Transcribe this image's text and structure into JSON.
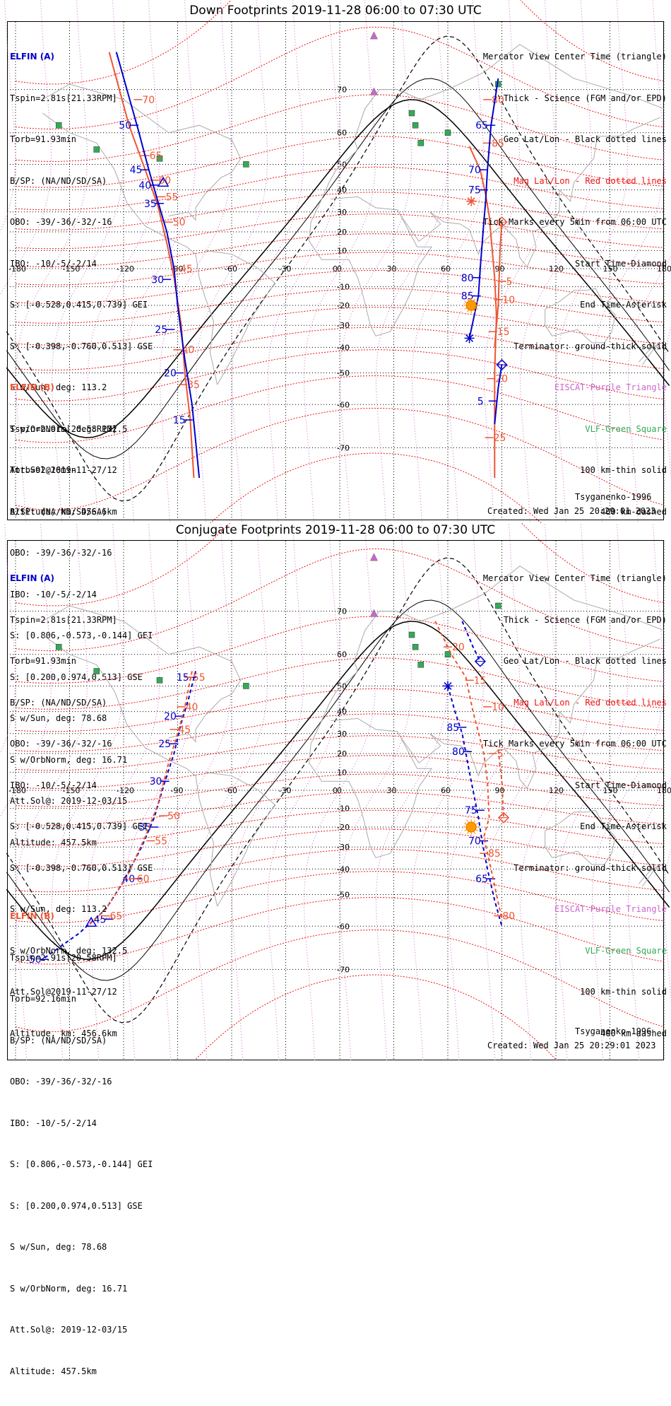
{
  "top": {
    "title": "Down Footprints 2019-11-28 06:00 to 07:30 UTC",
    "elfin_a": {
      "header": "ELFIN (A)",
      "lines": [
        "Tspin=2.81s[21.33RPM]",
        "Torb=91.93min",
        "B/SP: (NA/ND/SD/SA)",
        "OBO: -39/-36/-32/-16",
        "IBO: -10/-5/-2/14",
        "S: [-0.528,0.415,0.739] GEI",
        "S: [-0.398,-0.760,0.513] GSE",
        "S w/Sun, deg: 113.2",
        "S w/OrbNorm, deg: 132.5",
        "Att.Sol@2019-11-27/12",
        "Altitude, km: 456.6km"
      ]
    },
    "elfin_b": {
      "header": "ELFIN (B)",
      "lines": [
        "Tspin=2.91s[20.58RPM]",
        "Torb=92.16min",
        "B/SP: (NA/ND/SD/SA)",
        "OBO: -39/-36/-32/-16",
        "IBO: -10/-5/-2/14",
        "S: [0.806,-0.573,-0.144] GEI",
        "S: [0.200,0.974,0.513] GSE",
        "S w/Sun, deg: 78.68",
        "S w/OrbNorm, deg: 16.71",
        "Att.Sol@: 2019-12-03/15",
        "Altitude: 457.5km"
      ]
    },
    "footer_left": "Tsyganenko-1996",
    "footer_right": "Created: Wed Jan 25 20:29:01 2023"
  },
  "bottom": {
    "title": "Conjugate Footprints 2019-11-28 06:00 to 07:30 UTC",
    "elfin_a": {
      "header": "ELFIN (A)",
      "lines": [
        "Tspin=2.81s[21.33RPM]",
        "Torb=91.93min",
        "B/SP: (NA/ND/SD/SA)",
        "OBO: -39/-36/-32/-16",
        "IBO: -10/-5/-2/14",
        "S: [-0.528,0.415,0.739] GEI",
        "S: [-0.398,-0.760,0.513] GSE",
        "S w/Sun, deg: 113.2",
        "S w/OrbNorm, deg: 132.5",
        "Att.Sol@2019-11-27/12",
        "Altitude, km: 456.6km"
      ]
    },
    "elfin_b": {
      "header": "ELFIN (B)",
      "lines": [
        "Tspin=2.91s[20.58RPM]",
        "Torb=92.16min",
        "B/SP: (NA/ND/SD/SA)",
        "OBO: -39/-36/-32/-16",
        "IBO: -10/-5/-2/14",
        "S: [0.806,-0.573,-0.144] GEI",
        "S: [0.200,0.974,0.513] GSE",
        "S w/Sun, deg: 78.68",
        "S w/OrbNorm, deg: 16.71",
        "Att.Sol@: 2019-12-03/15",
        "Altitude: 457.5km"
      ]
    },
    "footer_left": "Tsyganenko-1996",
    "footer_right": "Created: Wed Jan 25 20:29:01 2023"
  },
  "legend": [
    {
      "text": "Mercator View Center Time (triangle)",
      "color": "#000000"
    },
    {
      "text": "Thick - Science (FGM and/or EPD)",
      "color": "#000000"
    },
    {
      "text": "Geo Lat/Lon - Black dotted lines",
      "color": "#000000"
    },
    {
      "text": "Mag Lat/Lon - Red dotted lines",
      "color": "#ee1111"
    },
    {
      "text": "Tick Marks every 5min from 06:00 UTC",
      "color": "#000000"
    },
    {
      "text": "Start Time-Diamond",
      "color": "#000000"
    },
    {
      "text": "End Time-Asterisk",
      "color": "#000000"
    },
    {
      "text": "Terminator: ground-thick solid",
      "color": "#000000"
    },
    {
      "text": "EISCAT-Purple Triangle",
      "color": "#cc66cc"
    },
    {
      "text": "VLF-Green Square",
      "color": "#33aa55"
    },
    {
      "text": "100 km-thin solid",
      "color": "#000000"
    },
    {
      "text": "400 km-dashed",
      "color": "#000000"
    }
  ],
  "lon_ticks": [
    "-180",
    "-150",
    "-120",
    "-90",
    "-60",
    "-30",
    "0",
    "30",
    "60",
    "90",
    "120",
    "150",
    "180"
  ],
  "lat_ticks": [
    "70",
    "60",
    "50",
    "40",
    "30",
    "20",
    "10",
    "0",
    "-10",
    "-20",
    "-30",
    "-40",
    "-50",
    "-60",
    "-70"
  ],
  "colors": {
    "elfin_a": "#0000cc",
    "elfin_b": "#ee5533",
    "mag_grid": "#ee1111",
    "eiscat": "#cc66cc",
    "vlf": "#33aa55"
  },
  "tracks": {
    "top_a_left_labels": [
      "50",
      "45",
      "40",
      "35",
      "30",
      "25",
      "20",
      "15"
    ],
    "top_b_left_labels": [
      "70",
      "65",
      "60",
      "55",
      "50",
      "45",
      "40",
      "35"
    ],
    "top_a_right_labels": [
      "65",
      "70",
      "75",
      "80",
      "85",
      "5"
    ],
    "top_b_right_labels": [
      "80",
      "85",
      "5",
      "10",
      "15",
      "20",
      "25"
    ],
    "bot_a_left_labels": [
      "15",
      "20",
      "25",
      "30",
      "35",
      "40",
      "45",
      "50"
    ],
    "bot_b_left_labels": [
      "55",
      "40",
      "45",
      "50",
      "55",
      "60",
      "65"
    ],
    "bot_a_right_labels": [
      "85",
      "80",
      "75",
      "70",
      "65"
    ],
    "bot_b_right_labels": [
      "20",
      "15",
      "10",
      "5",
      "85",
      "80"
    ]
  }
}
